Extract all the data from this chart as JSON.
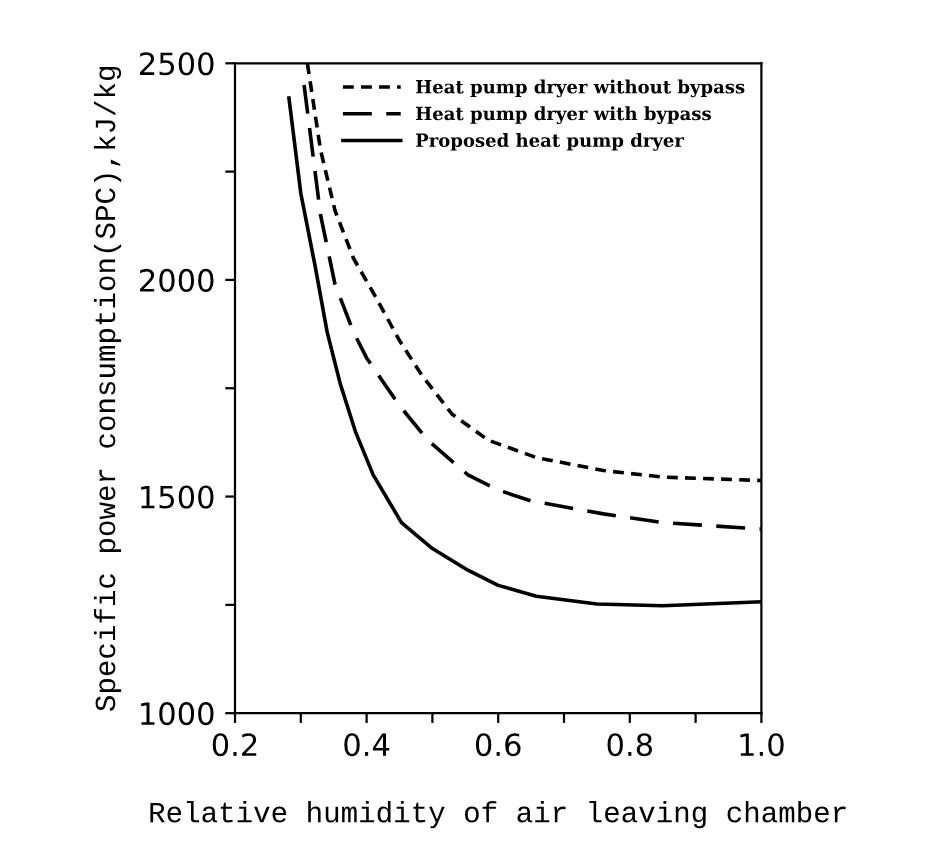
{
  "chart_data": {
    "type": "line",
    "xlabel": "Relative humidity of air leaving chamber",
    "ylabel": "Specific power consumption(SPC),kJ/kg",
    "xlim": [
      0.2,
      1.0
    ],
    "ylim": [
      1000,
      2500
    ],
    "xticks": [
      0.2,
      {
        "value": 0.3,
        "label": null
      },
      0.4,
      {
        "value": 0.5,
        "label": null
      },
      0.6,
      {
        "value": 0.7,
        "label": null
      },
      0.8,
      {
        "value": 0.9,
        "label": null
      },
      {
        "value": 1.0,
        "label": "1.0"
      }
    ],
    "yticks": [
      1000,
      {
        "value": 1250,
        "label": null
      },
      1500,
      {
        "value": 1750,
        "label": null
      },
      2000,
      {
        "value": 2250,
        "label": null
      },
      2500
    ],
    "legend": "top right",
    "grid": false,
    "marker": "none",
    "series": [
      {
        "name": "Heat pump dryer without bypass",
        "color": "#000000",
        "line_style": "dotted",
        "x": [
          0.31,
          0.33,
          0.352,
          0.38,
          0.414,
          0.45,
          0.484,
          0.53,
          0.585,
          0.658,
          0.76,
          0.85,
          1.0
        ],
        "values": [
          2500,
          2300,
          2160,
          2050,
          1960,
          1860,
          1780,
          1690,
          1630,
          1590,
          1560,
          1545,
          1537
        ]
      },
      {
        "name": "Heat pump dryer with bypass",
        "color": "#000000",
        "line_style": "dashed",
        "x": [
          0.305,
          0.33,
          0.352,
          0.38,
          0.4,
          0.45,
          0.493,
          0.554,
          0.6,
          0.65,
          0.76,
          0.85,
          1.0
        ],
        "values": [
          2450,
          2150,
          1990,
          1880,
          1820,
          1710,
          1630,
          1550,
          1515,
          1490,
          1460,
          1440,
          1425
        ]
      },
      {
        "name": "Proposed heat pump dryer",
        "color": "#000000",
        "line_style": "solid",
        "x": [
          0.282,
          0.3,
          0.322,
          0.34,
          0.36,
          0.383,
          0.41,
          0.453,
          0.5,
          0.554,
          0.6,
          0.658,
          0.75,
          0.85,
          1.0
        ],
        "values": [
          2420,
          2200,
          2030,
          1880,
          1760,
          1650,
          1550,
          1440,
          1380,
          1330,
          1295,
          1270,
          1252,
          1248,
          1257
        ]
      }
    ]
  }
}
